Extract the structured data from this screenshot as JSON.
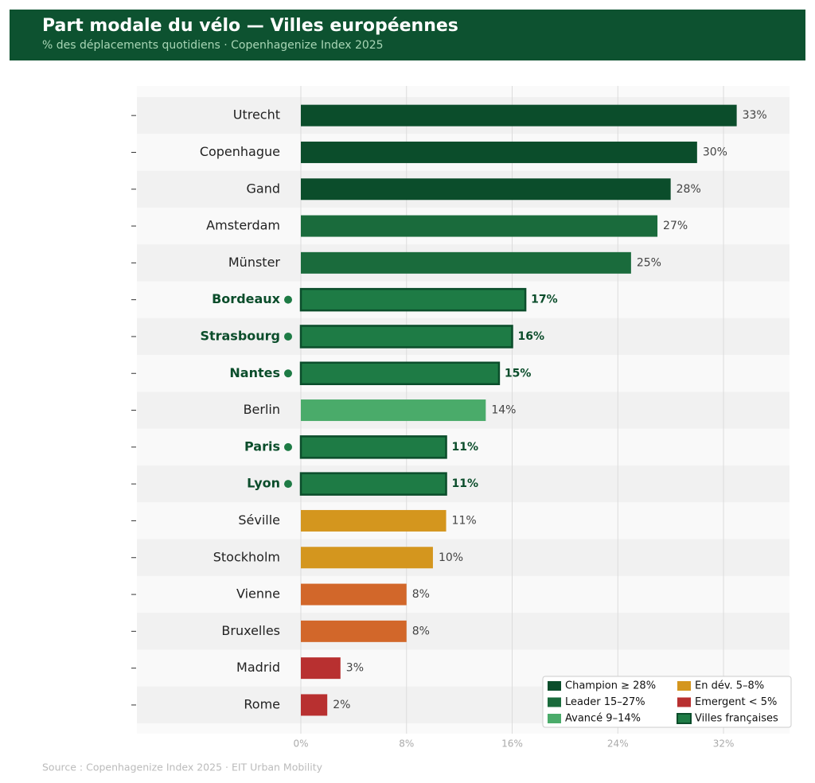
{
  "chart_data": {
    "type": "barh",
    "title": "Part modale du vélo — Villes européennes",
    "subtitle": "% des déplacements quotidiens  ·  Copenhagenize Index 2025",
    "source": "Source : Copenhagenize Index 2025 · EIT Urban Mobility",
    "categories": [
      "Utrecht",
      "Copenhague",
      "Gand",
      "Amsterdam",
      "Münster",
      "Bordeaux",
      "Strasbourg",
      "Nantes",
      "Berlin",
      "Paris",
      "Lyon",
      "Séville",
      "Stockholm",
      "Vienne",
      "Bruxelles",
      "Madrid",
      "Rome"
    ],
    "values": [
      33,
      30,
      28,
      27,
      25,
      17,
      16,
      15,
      14,
      11,
      11,
      11,
      10,
      8,
      8,
      3,
      2
    ],
    "value_labels": [
      "33%",
      "30%",
      "28%",
      "27%",
      "25%",
      "17%",
      "16%",
      "15%",
      "14%",
      "11%",
      "11%",
      "11%",
      "10%",
      "8%",
      "8%",
      "3%",
      "2%"
    ],
    "colors": [
      "#0b4d2b",
      "#0b4d2b",
      "#0b4d2b",
      "#1a6b3c",
      "#1a6b3c",
      "#1e7b45",
      "#1e7b45",
      "#1e7b45",
      "#4aab6a",
      "#1e7b45",
      "#1e7b45",
      "#d4961e",
      "#d4961e",
      "#d2672a",
      "#d2672a",
      "#b83030",
      "#b83030"
    ],
    "highlight": [
      5,
      6,
      7,
      9,
      10
    ],
    "highlight_edgecolor": "#0b4d2b",
    "xlim": [
      0,
      37
    ],
    "xticks": [
      {
        "value": 0,
        "label": "0%"
      },
      {
        "value": 8,
        "label": "8%"
      },
      {
        "value": 16,
        "label": "16%"
      },
      {
        "value": 24,
        "label": "24%"
      },
      {
        "value": 32,
        "label": "32%"
      }
    ],
    "grid": true,
    "legend": {
      "location": "lower right",
      "items": [
        {
          "label": "Champion  ≥ 28%",
          "color": "#0b4d2b"
        },
        {
          "label": "Leader  15–27%",
          "color": "#1a6b3c"
        },
        {
          "label": "Avancé  9–14%",
          "color": "#4aab6a"
        },
        {
          "label": "En dév.  5–8%",
          "color": "#d4961e"
        },
        {
          "label": "Emergent  < 5%",
          "color": "#b83030"
        },
        {
          "label": "Villes françaises",
          "color": "#1e7b45",
          "edgecolor": "#0b4d2b"
        }
      ]
    }
  }
}
